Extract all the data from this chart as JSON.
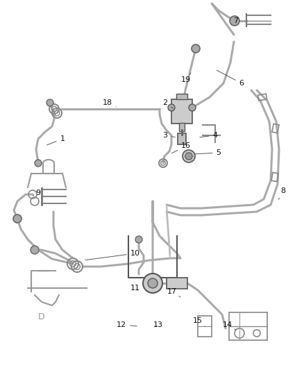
{
  "bg_color": "#ffffff",
  "hose_color": "#aaaaaa",
  "dark_color": "#666666",
  "label_color": "#111111",
  "fig_width": 4.38,
  "fig_height": 5.33,
  "dpi": 100
}
